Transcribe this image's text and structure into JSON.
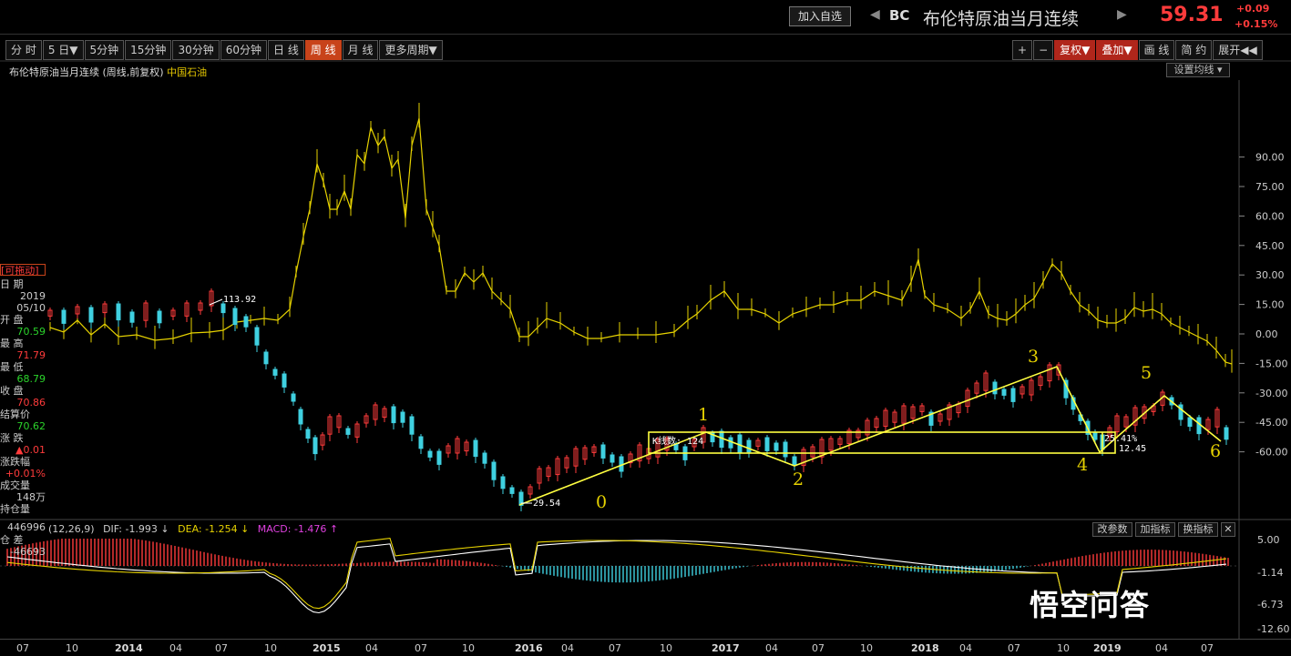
{
  "header": {
    "add_button": "加入自选",
    "arrow_left": "◀",
    "arrow_right": "▶",
    "code": "BC",
    "name": "布伦特原油当月连续",
    "price": "59.31",
    "change": "+0.09",
    "change_pct": "+0.15%"
  },
  "tabs": [
    {
      "label": "分 时"
    },
    {
      "label": "5 日▼"
    },
    {
      "label": "5分钟"
    },
    {
      "label": "15分钟"
    },
    {
      "label": "30分钟"
    },
    {
      "label": "60分钟"
    },
    {
      "label": "日 线"
    },
    {
      "label": "周 线",
      "active": true
    },
    {
      "label": "月 线"
    },
    {
      "label": "更多周期▼"
    }
  ],
  "right_tools": [
    "+",
    "−",
    "复权▼",
    "叠加▼",
    "画 线",
    "简 约",
    "展开◀◀"
  ],
  "chart_title": {
    "main": "布伦特原油当月连续 (周线,前复权)",
    "overlay": "中国石油"
  },
  "ma_button": "设置均线 ▾",
  "info_panel": {
    "drag": "[可拖动]",
    "date_label": "日  期",
    "date_year": "2019",
    "date_md": "05/10",
    "open_label": "开  盘",
    "open": "70.59",
    "high_label": "最  高",
    "high": "71.79",
    "low_label": "最  低",
    "low": "68.79",
    "close_label": "收  盘",
    "close": "70.86",
    "settle_label": "结算价",
    "settle": "70.62",
    "change_label": "涨  跌",
    "change": "▲0.01",
    "pct_label": "涨跌幅",
    "pct": "+0.01%",
    "volume_label": "成交量",
    "volume": "148万",
    "oi_label": "持仓量",
    "oi": "446996",
    "oi_diff_label": "仓  差",
    "oi_diff": "-46693"
  },
  "macd": {
    "params": "(12,26,9)",
    "dif": "DIF: -1.993 ↓",
    "dea": "DEA: -1.254 ↓",
    "macd": "MACD: -1.476 ↑",
    "buttons": [
      "改参数",
      "加指标",
      "换指标",
      "✕"
    ],
    "axis": [
      "5.00",
      "-1.14",
      "-6.73",
      "-12.60"
    ]
  },
  "price_axis": [
    "90.00",
    "75.00",
    "60.00",
    "45.00",
    "30.00",
    "15.00",
    "0.00",
    "-15.00",
    "-30.00",
    "-45.00",
    "-60.00"
  ],
  "annotations": {
    "high_label": "113.92",
    "low_label": "29.54",
    "box_label": "K线数: 124",
    "pct_label": "25.41%",
    "value_label": "12.45",
    "waves": [
      "0",
      "1",
      "2",
      "3",
      "4",
      "5",
      "6"
    ]
  },
  "x_axis": [
    {
      "t": "07"
    },
    {
      "t": "10"
    },
    {
      "t": "2014",
      "b": true
    },
    {
      "t": "04"
    },
    {
      "t": "07"
    },
    {
      "t": "10"
    },
    {
      "t": "2015",
      "b": true
    },
    {
      "t": "04"
    },
    {
      "t": "07"
    },
    {
      "t": "10"
    },
    {
      "t": "2016",
      "b": true
    },
    {
      "t": "04"
    },
    {
      "t": "07"
    },
    {
      "t": "10"
    },
    {
      "t": "2017",
      "b": true
    },
    {
      "t": "04"
    },
    {
      "t": "07"
    },
    {
      "t": "10"
    },
    {
      "t": "2018",
      "b": true
    },
    {
      "t": "04"
    },
    {
      "t": "07"
    },
    {
      "t": "10"
    },
    {
      "t": "2019",
      "b": true
    },
    {
      "t": "04"
    },
    {
      "t": "07"
    }
  ],
  "watermark": "悟空问答",
  "colors": {
    "up": "#ff3b3b",
    "down": "#3fd0e0",
    "yellow": "#e6d200",
    "bg": "#000000",
    "active_tab": "#c8431a"
  }
}
